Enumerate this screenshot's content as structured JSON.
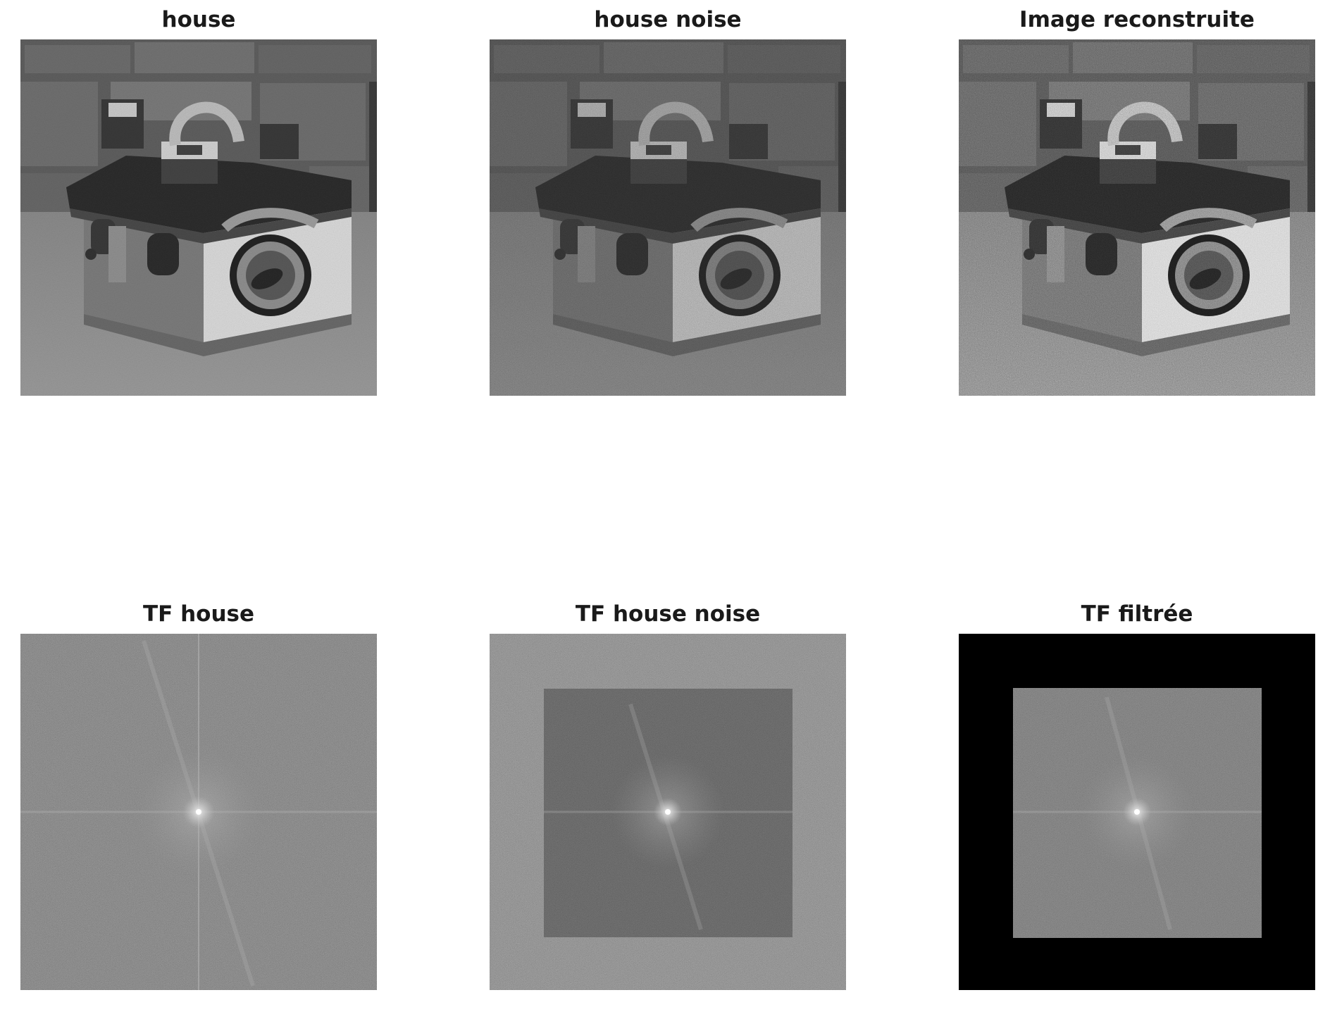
{
  "figure": {
    "panels": [
      {
        "id": "house",
        "title": "house",
        "kind": "photo-clean"
      },
      {
        "id": "house-noise",
        "title": "house noise",
        "kind": "photo-noisy"
      },
      {
        "id": "reconstructed",
        "title": "Image reconstruite",
        "kind": "photo-reconstructed"
      },
      {
        "id": "tf-house",
        "title": "TF house",
        "kind": "spectrum"
      },
      {
        "id": "tf-house-noise",
        "title": "TF house noise",
        "kind": "spectrum-noisy"
      },
      {
        "id": "tf-filtered",
        "title": "TF filtrée",
        "kind": "spectrum-filtered"
      }
    ]
  }
}
